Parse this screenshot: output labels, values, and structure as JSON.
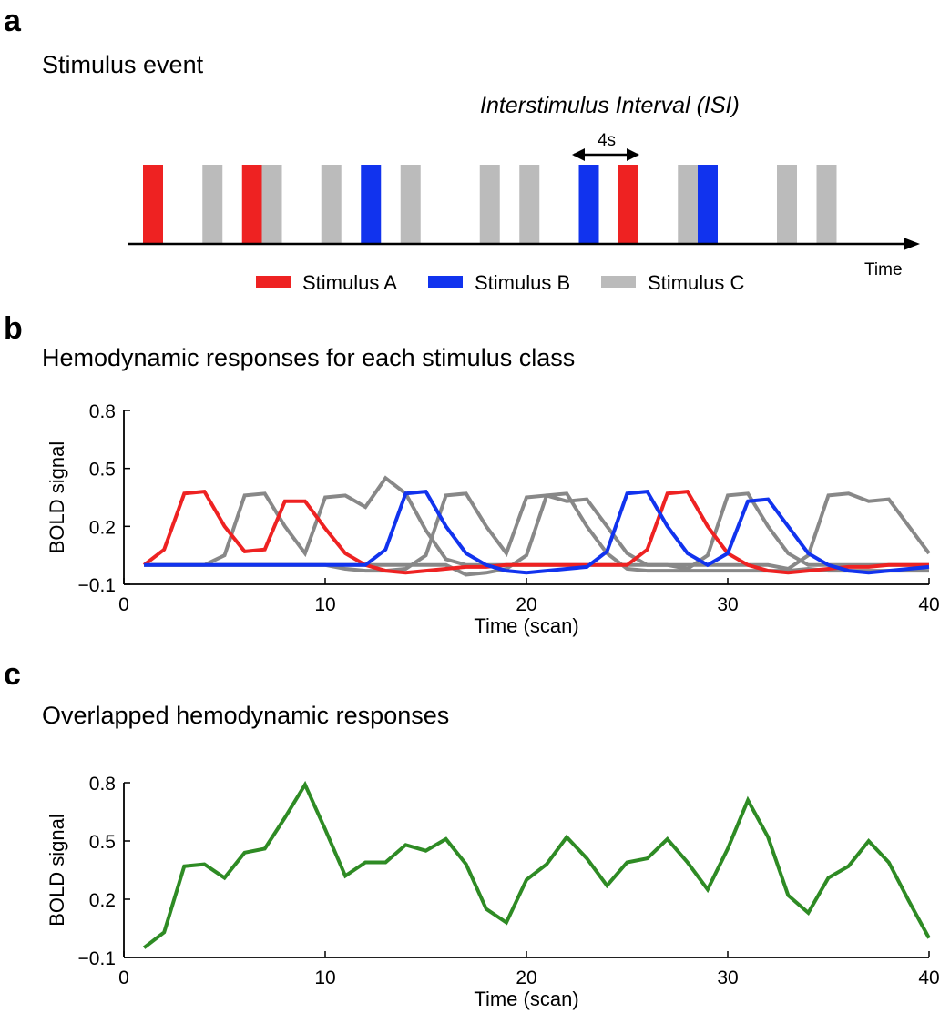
{
  "panels": {
    "a": {
      "label": "a",
      "title": "Stimulus event"
    },
    "b": {
      "label": "b",
      "title": "Hemodynamic responses for each stimulus class"
    },
    "c": {
      "label": "c",
      "title": "Overlapped hemodynamic responses"
    }
  },
  "stimulus_event": {
    "isi_label": "Interstimulus Interval (ISI)",
    "isi_value": "4s",
    "time_label": "Time",
    "events": [
      {
        "t": 1,
        "cls": "A"
      },
      {
        "t": 4,
        "cls": "C"
      },
      {
        "t": 6,
        "cls": "A"
      },
      {
        "t": 7,
        "cls": "C"
      },
      {
        "t": 10,
        "cls": "C"
      },
      {
        "t": 12,
        "cls": "B"
      },
      {
        "t": 14,
        "cls": "C"
      },
      {
        "t": 18,
        "cls": "C"
      },
      {
        "t": 20,
        "cls": "C"
      },
      {
        "t": 23,
        "cls": "B"
      },
      {
        "t": 25,
        "cls": "A"
      },
      {
        "t": 28,
        "cls": "C"
      },
      {
        "t": 29,
        "cls": "B"
      },
      {
        "t": 33,
        "cls": "C"
      },
      {
        "t": 35,
        "cls": "C"
      }
    ],
    "legend": [
      {
        "cls": "A",
        "name": "Stimulus A",
        "color": "#ee2222"
      },
      {
        "cls": "B",
        "name": "Stimulus B",
        "color": "#1133ee"
      },
      {
        "cls": "C",
        "name": "Stimulus C",
        "color": "#bbbbbb"
      }
    ]
  },
  "chart_data": [
    {
      "type": "line",
      "xlabel": "Time (scan)",
      "ylabel": "BOLD signal",
      "xlim": [
        0,
        40
      ],
      "ylim": [
        -0.1,
        0.8
      ],
      "xticks": [
        0,
        10,
        20,
        30,
        40
      ],
      "yticks": [
        -0.1,
        0.2,
        0.5,
        0.8
      ],
      "ytick_labels": [
        "−0.1",
        "0.2",
        "0.5",
        "0.8"
      ],
      "x": [
        1,
        2,
        3,
        4,
        5,
        6,
        7,
        8,
        9,
        10,
        11,
        12,
        13,
        14,
        15,
        16,
        17,
        18,
        19,
        20,
        21,
        22,
        23,
        24,
        25,
        26,
        27,
        28,
        29,
        30,
        31,
        32,
        33,
        34,
        35,
        36,
        37,
        38,
        39,
        40
      ],
      "series": [
        {
          "color": "#888888",
          "values": [
            0.0,
            0.0,
            0.0,
            0.0,
            0.05,
            0.36,
            0.37,
            0.2,
            0.06,
            0.35,
            0.36,
            0.3,
            0.45,
            0.37,
            0.18,
            0.03,
            0.0,
            0.0,
            0.0,
            0.0,
            0.0,
            0.0,
            0.0,
            0.0,
            0.0,
            0.0,
            0.0,
            -0.02,
            0.05,
            0.36,
            0.37,
            0.2,
            0.06,
            0.0,
            0.0,
            0.0,
            0.0,
            0.0,
            0.0,
            0.0
          ]
        },
        {
          "color": "#888888",
          "values": [
            0.0,
            0.0,
            0.0,
            0.0,
            0.0,
            0.0,
            0.0,
            0.0,
            0.0,
            0.0,
            -0.02,
            -0.03,
            -0.03,
            -0.02,
            0.05,
            0.36,
            0.37,
            0.2,
            0.06,
            0.35,
            0.36,
            0.33,
            0.34,
            0.2,
            0.06,
            0.0,
            0.0,
            0.0,
            0.0,
            0.0,
            0.0,
            0.0,
            -0.02,
            0.05,
            0.36,
            0.37,
            0.33,
            0.34,
            0.2,
            0.06
          ]
        },
        {
          "color": "#888888",
          "values": [
            0.0,
            0.0,
            0.0,
            0.0,
            0.0,
            0.0,
            0.0,
            0.0,
            0.0,
            0.0,
            0.0,
            0.0,
            0.0,
            0.0,
            0.0,
            0.0,
            -0.05,
            -0.04,
            -0.02,
            0.05,
            0.36,
            0.37,
            0.2,
            0.06,
            -0.02,
            -0.03,
            -0.03,
            -0.03,
            -0.03,
            -0.03,
            -0.03,
            -0.03,
            -0.03,
            -0.02,
            -0.03,
            -0.03,
            -0.03,
            -0.03,
            -0.03,
            -0.03
          ]
        },
        {
          "color": "#ee2222",
          "values": [
            0.0,
            0.08,
            0.37,
            0.38,
            0.2,
            0.07,
            0.08,
            0.33,
            0.33,
            0.19,
            0.06,
            0.0,
            -0.03,
            -0.04,
            -0.03,
            -0.02,
            -0.01,
            -0.01,
            0.0,
            0.0,
            0.0,
            0.0,
            0.0,
            0.0,
            0.0,
            0.08,
            0.37,
            0.38,
            0.2,
            0.06,
            0.0,
            -0.03,
            -0.04,
            -0.03,
            -0.02,
            -0.01,
            -0.01,
            0.0,
            0.0,
            0.0
          ]
        },
        {
          "color": "#1133ee",
          "values": [
            0.0,
            0.0,
            0.0,
            0.0,
            0.0,
            0.0,
            0.0,
            0.0,
            0.0,
            0.0,
            0.0,
            0.0,
            0.08,
            0.37,
            0.38,
            0.2,
            0.06,
            0.0,
            -0.03,
            -0.04,
            -0.03,
            -0.02,
            -0.01,
            0.07,
            0.37,
            0.38,
            0.2,
            0.06,
            0.0,
            0.06,
            0.33,
            0.34,
            0.2,
            0.06,
            0.0,
            -0.03,
            -0.04,
            -0.03,
            -0.02,
            -0.01
          ]
        }
      ]
    },
    {
      "type": "line",
      "xlabel": "Time (scan)",
      "ylabel": "BOLD signal",
      "xlim": [
        0,
        40
      ],
      "ylim": [
        -0.1,
        0.8
      ],
      "xticks": [
        0,
        10,
        20,
        30,
        40
      ],
      "yticks": [
        -0.1,
        0.2,
        0.5,
        0.8
      ],
      "ytick_labels": [
        "−0.1",
        "0.2",
        "0.5",
        "0.8"
      ],
      "x": [
        1,
        2,
        3,
        4,
        5,
        6,
        7,
        8,
        9,
        10,
        11,
        12,
        13,
        14,
        15,
        16,
        17,
        18,
        19,
        20,
        21,
        22,
        23,
        24,
        25,
        26,
        27,
        28,
        29,
        30,
        31,
        32,
        33,
        34,
        35,
        36,
        37,
        38,
        39,
        40
      ],
      "series": [
        {
          "color": "#2e8b24",
          "values": [
            -0.05,
            0.03,
            0.37,
            0.38,
            0.31,
            0.44,
            0.46,
            0.62,
            0.79,
            0.56,
            0.32,
            0.39,
            0.39,
            0.48,
            0.45,
            0.51,
            0.38,
            0.15,
            0.08,
            0.3,
            0.38,
            0.52,
            0.41,
            0.27,
            0.39,
            0.41,
            0.51,
            0.39,
            0.25,
            0.46,
            0.71,
            0.52,
            0.22,
            0.13,
            0.31,
            0.37,
            0.5,
            0.39,
            0.19,
            0.0
          ]
        }
      ]
    }
  ]
}
